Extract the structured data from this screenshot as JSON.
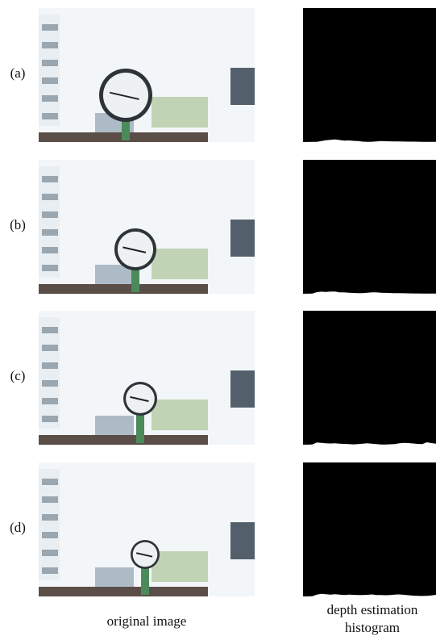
{
  "rows": [
    {
      "label": "(a)"
    },
    {
      "label": "(b)"
    },
    {
      "label": "(c)"
    },
    {
      "label": "(d)"
    }
  ],
  "captions": {
    "original": "original image",
    "histogram": [
      "depth estimation",
      "histogram"
    ]
  }
}
